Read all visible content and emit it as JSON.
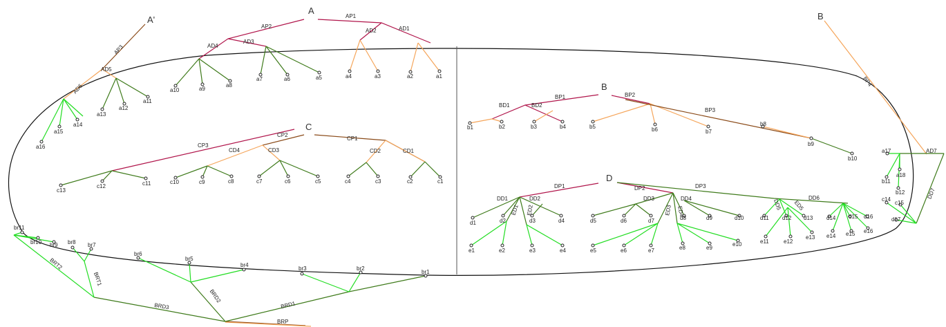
{
  "colors": {
    "outline": "#111111",
    "divider": "#555555",
    "primary": "#b0144a",
    "main_brown": "#8a4a18",
    "distribution": "#3e7a1a",
    "light_green": "#22dd22",
    "orange": "#f5a55a",
    "text": "#222222"
  },
  "trunk_labels": {
    "A": "A",
    "A_prime": "A'",
    "B": "B",
    "B_top": "B",
    "C": "C",
    "D": "D"
  },
  "segment_labels": {
    "AP1": "AP1",
    "AP2": "AP2",
    "AP3": "AP3",
    "AD1": "AD1",
    "AD2": "AD2",
    "AD3": "AD3",
    "AD4": "AD4",
    "AD5": "AD5",
    "AD6": "AD6",
    "AD7": "AD7",
    "BP1": "BP1",
    "BP2": "BP2",
    "BP3": "BP3",
    "BP4": "BP4",
    "BD1": "BD1",
    "BD2": "BD2",
    "CP1": "CP1",
    "CP2": "CP2",
    "CP3": "CP3",
    "CD1": "CD1",
    "CD2": "CD2",
    "CD3": "CD3",
    "CD4": "CD4",
    "DP1": "DP1",
    "DP2": "DP2",
    "DP3": "DP3",
    "DD1": "DD1",
    "DD2": "DD2",
    "DD3": "DD3",
    "DD4": "DD4",
    "DD5": "DD5",
    "DD6": "DD6",
    "DD7": "DD7",
    "ED1": "ED1",
    "ED2": "ED2",
    "ED3": "ED3",
    "ED4": "ED4",
    "ED5": "ED5",
    "BRT1": "BRT1",
    "BRT2": "BRT2",
    "BRD1": "BRD1",
    "BRD2": "BRD2",
    "BRD3": "BRD3",
    "BRP": "BRP"
  },
  "nodes": {
    "a1": "a1",
    "a2": "a2",
    "a3": "a3",
    "a4": "a4",
    "a5": "a5",
    "a6": "a6",
    "a7": "a7",
    "a8": "a8",
    "a9": "a9",
    "a10": "a10",
    "a11": "a11",
    "a12": "a12",
    "a13": "a13",
    "a14": "a14",
    "a15": "a15",
    "a16": "a16",
    "a17": "a17",
    "a18": "a18",
    "b1": "b1",
    "b2": "b2",
    "b3": "b3",
    "b4": "b4",
    "b5": "b5",
    "b6": "b6",
    "b7": "b7",
    "b8": "b8",
    "b9": "b9",
    "b10": "b10",
    "b11": "b11",
    "b12": "b12",
    "c1": "c1",
    "c2": "c2",
    "c3": "c3",
    "c4": "c4",
    "c5": "c5",
    "c6": "c6",
    "c7": "c7",
    "c8": "c8",
    "c9": "c9",
    "c10": "c10",
    "c11": "c11",
    "c12": "c12",
    "c13": "c13",
    "c14": "c14",
    "c15": "c15",
    "d1": "d1",
    "d2": "d2",
    "d3": "d3",
    "d4": "d4",
    "d5": "d5",
    "d6": "d6",
    "d7": "d7",
    "d8": "d8",
    "d9": "d9",
    "d10": "d10",
    "d11": "d11",
    "d12": "d12",
    "d13": "d13",
    "d14": "d14",
    "d15": "d15",
    "d16": "d16",
    "d17": "d17",
    "e1": "e1",
    "e2": "e2",
    "e3": "e3",
    "e4": "e4",
    "e5": "e5",
    "e6": "e6",
    "e7": "e7",
    "e8": "e8",
    "e9": "e9",
    "e10": "e10",
    "e11": "e11",
    "e12": "e12",
    "e13": "e13",
    "e14": "e14",
    "e15": "e15",
    "e16": "e16",
    "br1": "br1",
    "br2": "br2",
    "br3": "br3",
    "br4": "br4",
    "br5": "br5",
    "br6": "br6",
    "br7": "br7",
    "br8": "br8",
    "br9": "br9",
    "br10": "br10",
    "br11": "br11"
  }
}
